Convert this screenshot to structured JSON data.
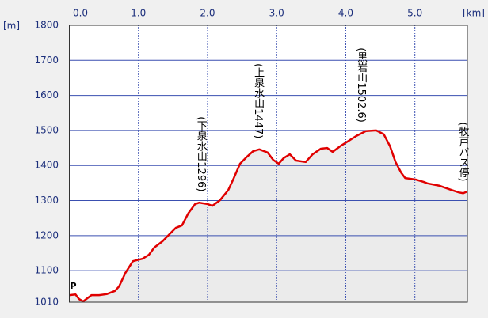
{
  "chart_data": {
    "type": "area",
    "x_unit": "[km]",
    "y_unit": "[m]",
    "start_marker": "P",
    "x": [
      0,
      0.09,
      0.14,
      0.2,
      0.26,
      0.32,
      0.43,
      0.54,
      0.66,
      0.72,
      0.81,
      0.92,
      1.06,
      1.15,
      1.23,
      1.35,
      1.46,
      1.54,
      1.63,
      1.72,
      1.82,
      1.88,
      2.0,
      2.07,
      2.18,
      2.3,
      2.38,
      2.47,
      2.57,
      2.66,
      2.75,
      2.87,
      2.95,
      3.03,
      3.1,
      3.19,
      3.28,
      3.42,
      3.52,
      3.64,
      3.73,
      3.81,
      3.92,
      4.04,
      4.15,
      4.29,
      4.44,
      4.55,
      4.64,
      4.72,
      4.8,
      4.86,
      5.01,
      5.13,
      5.18,
      5.36,
      5.53,
      5.64,
      5.7,
      5.76
    ],
    "series": [
      {
        "name": "elevation",
        "color": "#e00000",
        "values": [
          1030,
          1032,
          1019,
          1012,
          1021,
          1030,
          1030,
          1033,
          1042,
          1055,
          1093,
          1127,
          1134,
          1145,
          1166,
          1184,
          1206,
          1222,
          1229,
          1263,
          1290,
          1294,
          1290,
          1285,
          1301,
          1330,
          1364,
          1405,
          1425,
          1441,
          1446,
          1437,
          1416,
          1405,
          1421,
          1432,
          1414,
          1410,
          1432,
          1448,
          1450,
          1439,
          1455,
          1470,
          1484,
          1498,
          1500,
          1489,
          1455,
          1410,
          1380,
          1364,
          1360,
          1353,
          1349,
          1342,
          1330,
          1323,
          1321,
          1326
        ]
      }
    ],
    "area_color": "#ebebeb",
    "xlim": [
      0,
      5.76
    ],
    "xticks": [
      {
        "value": 0,
        "label": "0.0"
      },
      {
        "value": 1,
        "label": "1.0"
      },
      {
        "value": 2,
        "label": "2.0"
      },
      {
        "value": 3,
        "label": "3.0"
      },
      {
        "value": 4,
        "label": "4.0"
      },
      {
        "value": 5,
        "label": "5.0"
      }
    ],
    "ylim": [
      1010,
      1800
    ],
    "yticks": [
      1010,
      1100,
      1200,
      1300,
      1400,
      1500,
      1600,
      1700,
      1800
    ],
    "grid": true,
    "annotations": [
      {
        "text": "(下泉水山1296)",
        "x": 1.9
      },
      {
        "text": "(上泉水山1447)",
        "x": 2.73
      },
      {
        "text": "(黒岩山1502.6)",
        "x": 4.22
      },
      {
        "text": "(牧戸バス停)",
        "x": 5.72
      }
    ]
  }
}
